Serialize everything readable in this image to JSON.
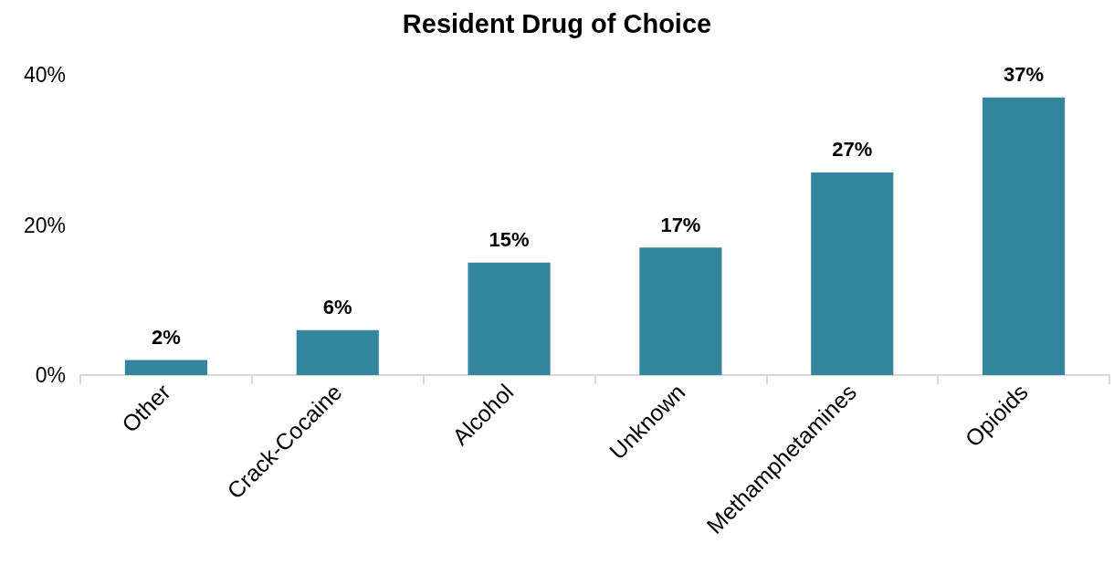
{
  "chart_data": {
    "type": "bar",
    "title": "Resident Drug of Choice",
    "categories": [
      "Other",
      "Crack-Cocaine",
      "Alcohol",
      "Unknown",
      "Methamphetamines",
      "Opioids"
    ],
    "values": [
      2,
      6,
      15,
      17,
      27,
      37
    ],
    "value_labels": [
      "2%",
      "6%",
      "15%",
      "17%",
      "27%",
      "37%"
    ],
    "color": "#33869d",
    "ylim": [
      0,
      40
    ],
    "yticks": [
      {
        "value": 0,
        "label": "0%"
      },
      {
        "value": 20,
        "label": "20%"
      },
      {
        "value": 40,
        "label": "40%"
      }
    ],
    "grid": false
  }
}
